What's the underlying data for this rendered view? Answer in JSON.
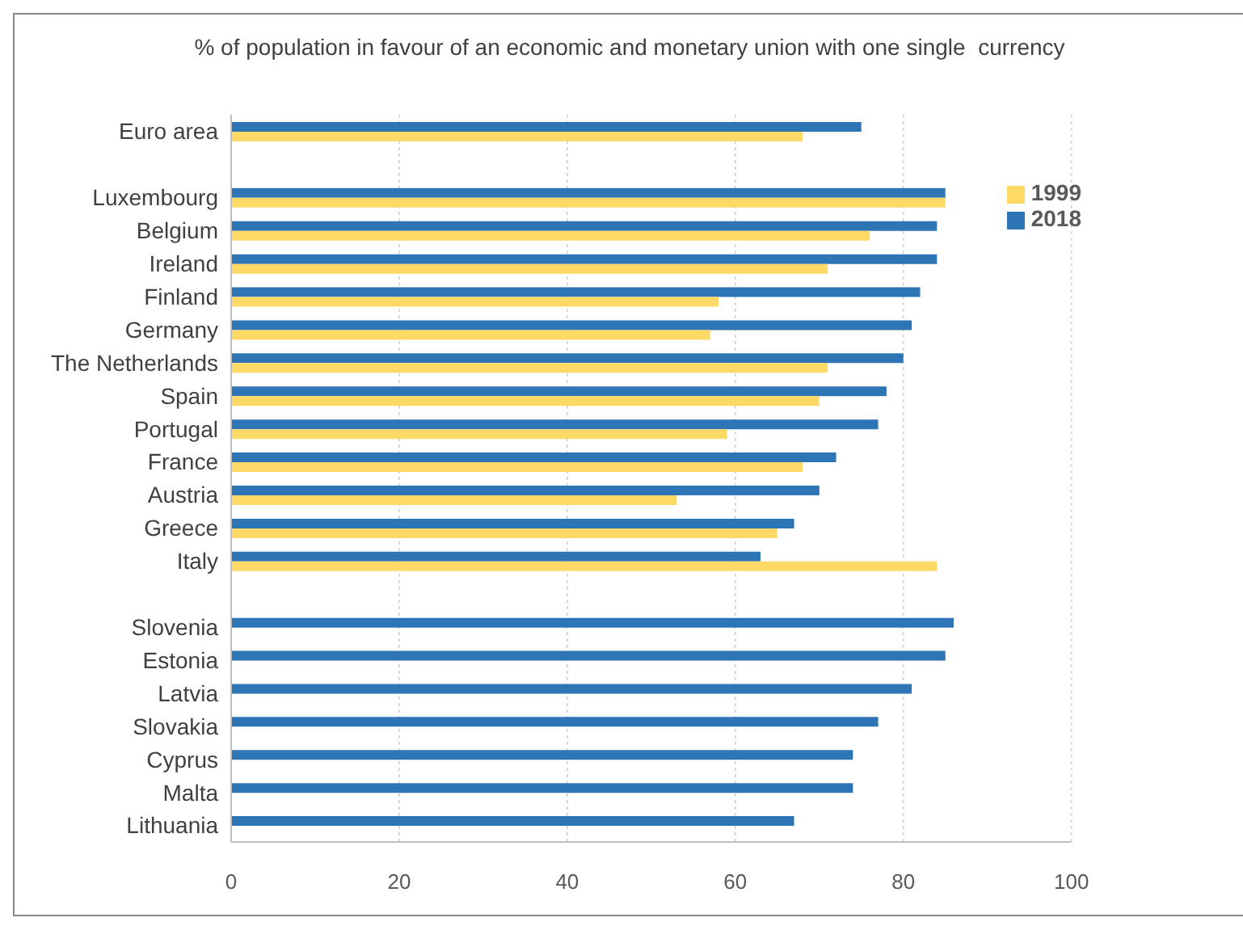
{
  "chart_data": {
    "type": "bar",
    "orientation": "horizontal",
    "title": "% of population in favour of an economic and monetary union with one single  currency",
    "categories": [
      "Euro area",
      null,
      "Luxembourg",
      "Belgium",
      "Ireland",
      "Finland",
      "Germany",
      "The Netherlands",
      "Spain",
      "Portugal",
      "France",
      "Austria",
      "Greece",
      "Italy",
      null,
      "Slovenia",
      "Estonia",
      "Latvia",
      "Slovakia",
      "Cyprus",
      "Malta",
      "Lithuania"
    ],
    "series": [
      {
        "name": "2018",
        "color": "#2e75b6",
        "values": [
          75,
          null,
          85,
          84,
          84,
          82,
          81,
          80,
          78,
          77,
          72,
          70,
          67,
          63,
          null,
          86,
          85,
          81,
          77,
          74,
          74,
          67
        ]
      },
      {
        "name": "1999",
        "color": "#ffd966",
        "values": [
          68,
          null,
          85,
          76,
          71,
          58,
          57,
          71,
          70,
          59,
          68,
          53,
          65,
          84,
          null,
          null,
          null,
          null,
          null,
          null,
          null,
          null
        ]
      }
    ],
    "xlim": [
      0,
      100
    ],
    "xticks": [
      0,
      20,
      40,
      60,
      80,
      100
    ],
    "grid": "x",
    "legend": "top right"
  }
}
